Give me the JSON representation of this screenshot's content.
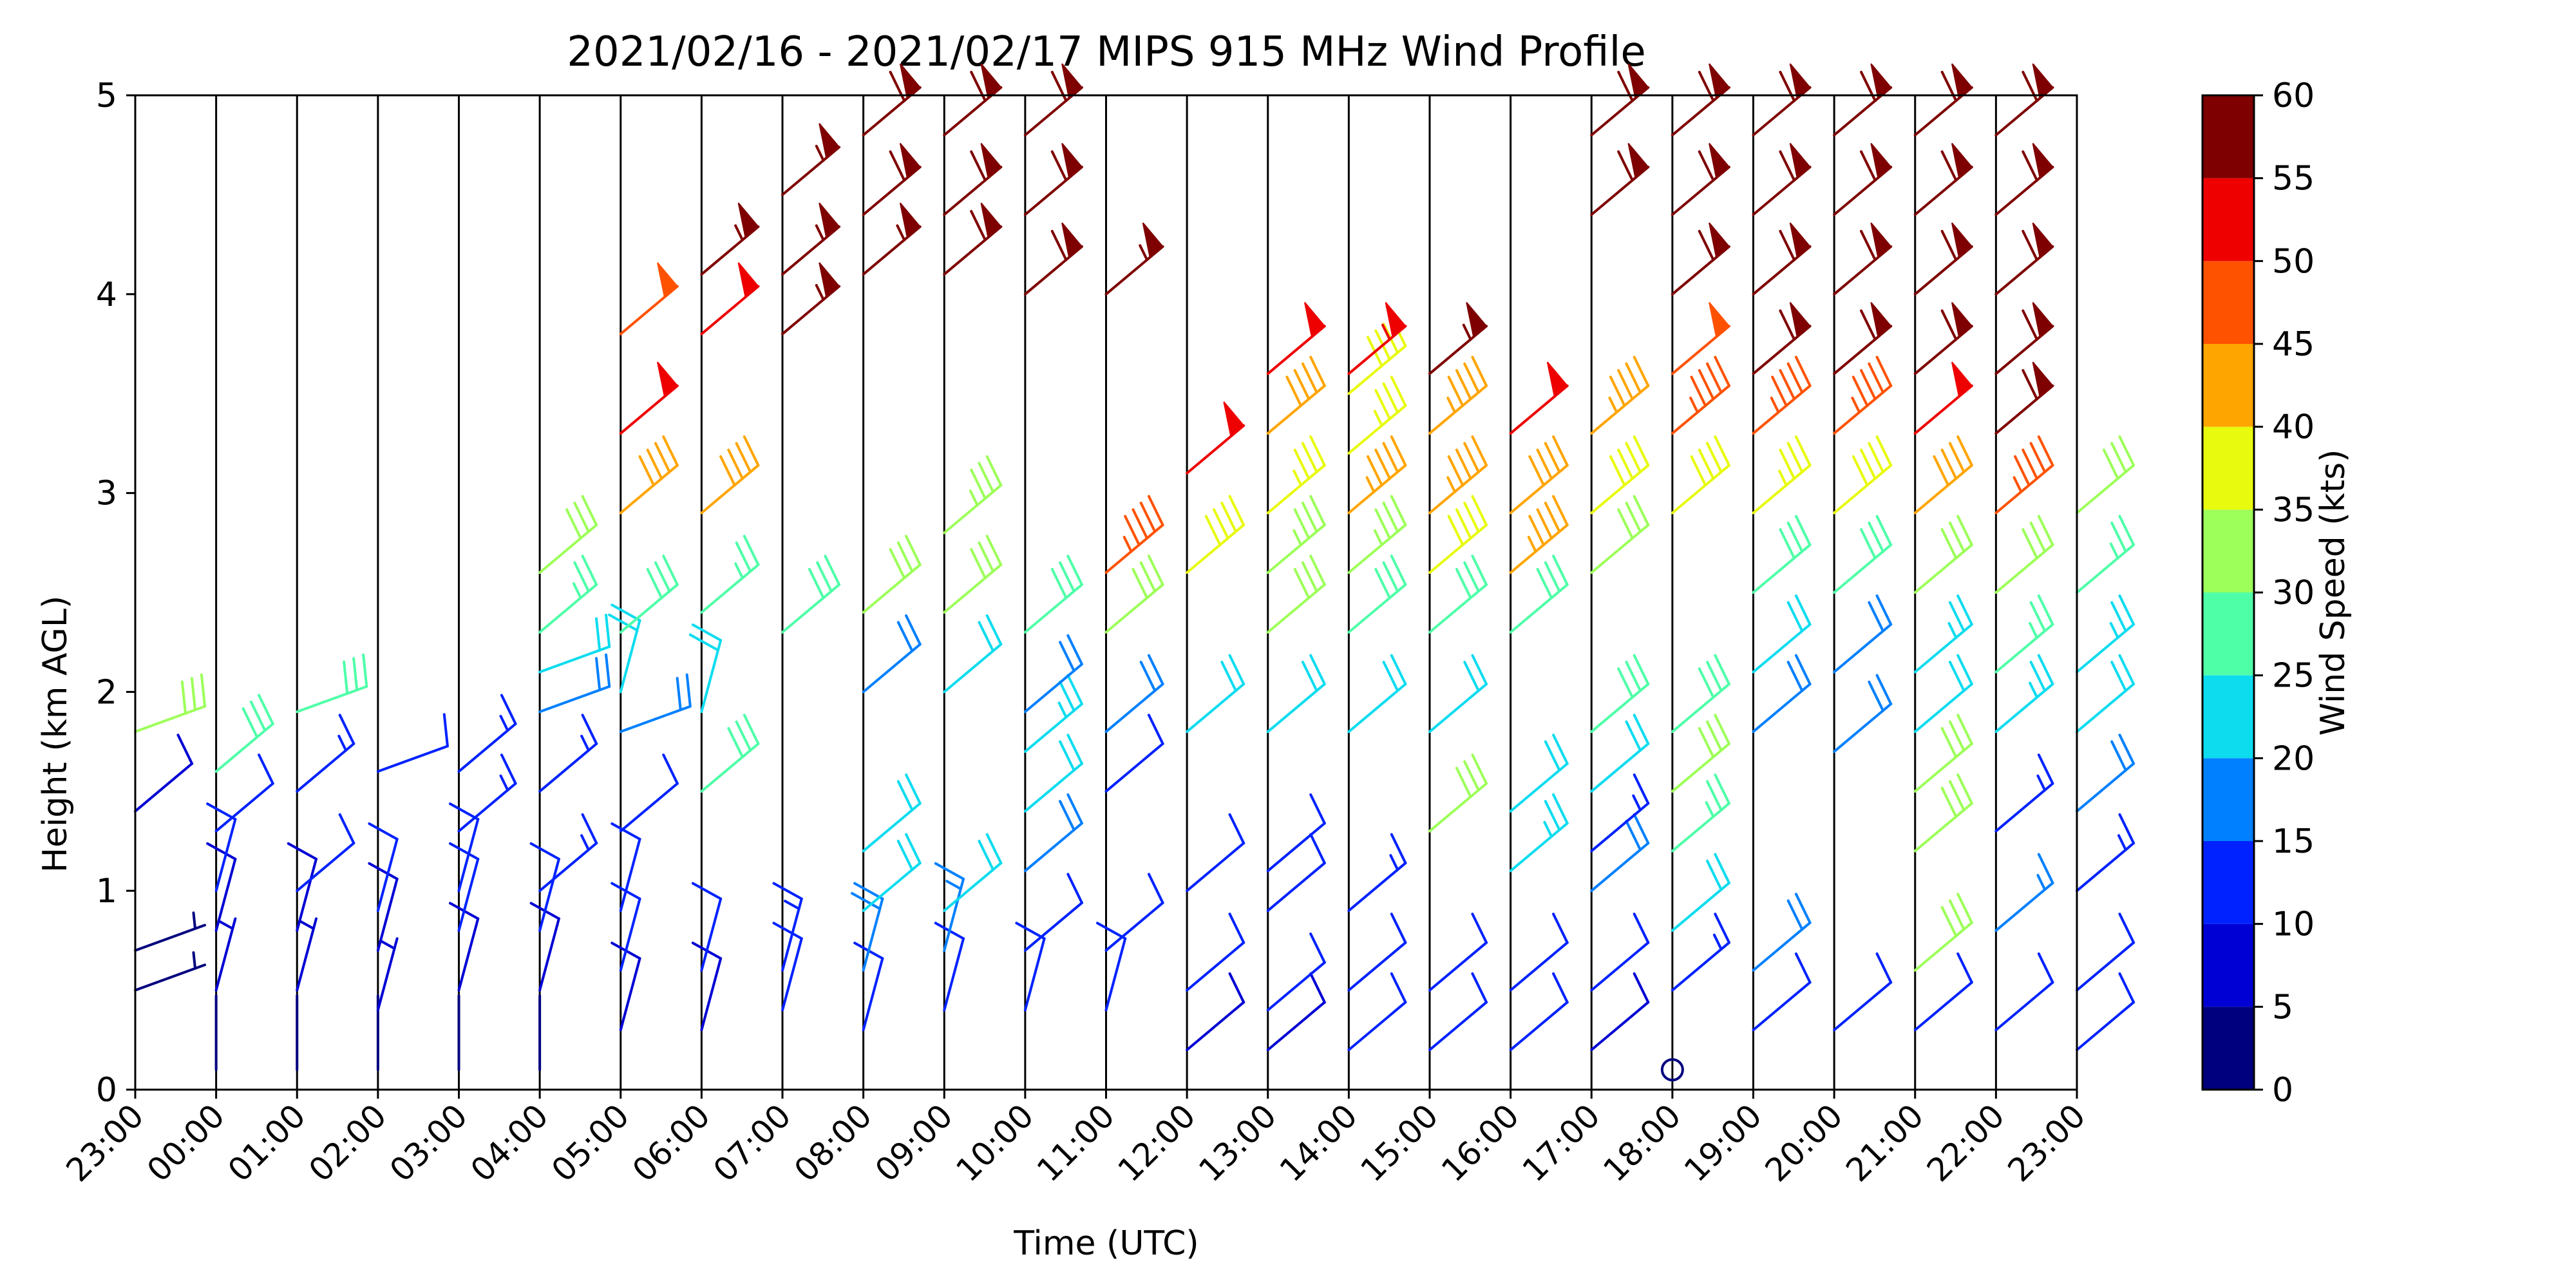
{
  "chart_data": {
    "type": "wind_barb_profile",
    "title": "2021/02/16 - 2021/02/17 MIPS 915 MHz Wind Profile",
    "xlabel": "Time (UTC)",
    "ylabel": "Height (km AGL)",
    "x_tick_labels": [
      "23:00",
      "00:00",
      "01:00",
      "02:00",
      "03:00",
      "04:00",
      "05:00",
      "06:00",
      "07:00",
      "08:00",
      "09:00",
      "10:00",
      "11:00",
      "12:00",
      "13:00",
      "14:00",
      "15:00",
      "16:00",
      "17:00",
      "18:00",
      "19:00",
      "20:00",
      "21:00",
      "22:00",
      "23:00"
    ],
    "ylim": [
      0,
      5
    ],
    "y_ticks": [
      0,
      1,
      2,
      3,
      4,
      5
    ],
    "colorbar": {
      "label": "Wind Speed (kts)",
      "ticks": [
        0,
        5,
        10,
        15,
        20,
        25,
        30,
        35,
        40,
        45,
        50,
        55,
        60
      ],
      "colors": [
        "#00007f",
        "#0000d4",
        "#0022ff",
        "#0080ff",
        "#0ddcef",
        "#4fffa8",
        "#9dff59",
        "#e8fa0e",
        "#ffa500",
        "#ff5200",
        "#ee0000",
        "#7f0000"
      ]
    },
    "profiles": [
      {
        "time": "23:00",
        "barbs": [
          [
            0.5,
            3,
            "nw"
          ],
          [
            0.7,
            4,
            "nw"
          ],
          [
            1.4,
            9,
            "w"
          ],
          [
            1.8,
            32,
            "nw"
          ]
        ]
      },
      {
        "time": "00:00",
        "barbs": [
          [
            0.1,
            1,
            "n"
          ],
          [
            0.5,
            6,
            "sw"
          ],
          [
            0.8,
            8,
            "sw"
          ],
          [
            1.0,
            10,
            "sw"
          ],
          [
            1.3,
            12,
            "w"
          ],
          [
            1.6,
            28,
            "w"
          ]
        ]
      },
      {
        "time": "01:00",
        "barbs": [
          [
            0.1,
            1,
            "n"
          ],
          [
            0.5,
            6,
            "sw"
          ],
          [
            0.8,
            8,
            "sw"
          ],
          [
            1.0,
            12,
            "w"
          ],
          [
            1.5,
            14,
            "w"
          ],
          [
            1.9,
            28,
            "nw"
          ]
        ]
      },
      {
        "time": "02:00",
        "barbs": [
          [
            0.1,
            2,
            "n"
          ],
          [
            0.4,
            7,
            "sw"
          ],
          [
            0.7,
            9,
            "sw"
          ],
          [
            0.9,
            10,
            "sw"
          ],
          [
            1.6,
            10,
            "nw"
          ]
        ]
      },
      {
        "time": "03:00",
        "barbs": [
          [
            0.1,
            2,
            "n"
          ],
          [
            0.5,
            8,
            "sw"
          ],
          [
            0.8,
            10,
            "sw"
          ],
          [
            1.0,
            11,
            "sw"
          ],
          [
            1.3,
            13,
            "w"
          ],
          [
            1.6,
            14,
            "w"
          ]
        ]
      },
      {
        "time": "04:00",
        "barbs": [
          [
            0.1,
            2,
            "n"
          ],
          [
            0.5,
            8,
            "sw"
          ],
          [
            0.8,
            10,
            "sw"
          ],
          [
            1.0,
            13,
            "w"
          ],
          [
            1.5,
            14,
            "w"
          ],
          [
            1.9,
            18,
            "nw"
          ],
          [
            2.1,
            22,
            "nw"
          ],
          [
            2.3,
            26,
            "w"
          ],
          [
            2.6,
            32,
            "w"
          ]
        ]
      },
      {
        "time": "05:00",
        "barbs": [
          [
            0.3,
            8,
            "sw"
          ],
          [
            0.6,
            10,
            "sw"
          ],
          [
            0.9,
            12,
            "sw"
          ],
          [
            1.3,
            12,
            "w"
          ],
          [
            1.8,
            18,
            "nw"
          ],
          [
            2.0,
            20,
            "sw"
          ],
          [
            2.3,
            28,
            "w"
          ],
          [
            2.9,
            42,
            "w"
          ],
          [
            3.3,
            52,
            "w"
          ],
          [
            3.8,
            48,
            "w"
          ]
        ]
      },
      {
        "time": "06:00",
        "barbs": [
          [
            0.3,
            8,
            "sw"
          ],
          [
            0.6,
            11,
            "sw"
          ],
          [
            1.5,
            28,
            "w"
          ],
          [
            1.9,
            20,
            "sw"
          ],
          [
            2.4,
            26,
            "w"
          ],
          [
            2.9,
            42,
            "w"
          ],
          [
            3.8,
            52,
            "w"
          ],
          [
            4.1,
            56,
            "w"
          ]
        ]
      },
      {
        "time": "07:00",
        "barbs": [
          [
            0.4,
            10,
            "sw"
          ],
          [
            0.6,
            14,
            "sw"
          ],
          [
            2.3,
            28,
            "w"
          ],
          [
            3.8,
            56,
            "w"
          ],
          [
            4.1,
            56,
            "w"
          ],
          [
            4.5,
            57,
            "w"
          ]
        ]
      },
      {
        "time": "08:00",
        "barbs": [
          [
            0.3,
            12,
            "sw"
          ],
          [
            0.6,
            18,
            "sw"
          ],
          [
            0.9,
            22,
            "w"
          ],
          [
            1.2,
            20,
            "w"
          ],
          [
            2.0,
            18,
            "w"
          ],
          [
            2.4,
            32,
            "w"
          ],
          [
            4.1,
            57,
            "w"
          ],
          [
            4.4,
            58,
            "w"
          ],
          [
            4.8,
            58,
            "w"
          ]
        ]
      },
      {
        "time": "09:00",
        "barbs": [
          [
            0.4,
            12,
            "sw"
          ],
          [
            0.7,
            16,
            "sw"
          ],
          [
            0.9,
            22,
            "w"
          ],
          [
            2.0,
            20,
            "w"
          ],
          [
            2.4,
            32,
            "w"
          ],
          [
            2.8,
            34,
            "w"
          ],
          [
            4.1,
            58,
            "w"
          ],
          [
            4.4,
            58,
            "w"
          ],
          [
            4.8,
            58,
            "w"
          ]
        ]
      },
      {
        "time": "10:00",
        "barbs": [
          [
            0.4,
            10,
            "sw"
          ],
          [
            0.7,
            12,
            "w"
          ],
          [
            1.1,
            18,
            "w"
          ],
          [
            1.4,
            22,
            "w"
          ],
          [
            1.7,
            24,
            "w"
          ],
          [
            1.9,
            18,
            "w"
          ],
          [
            2.3,
            28,
            "w"
          ],
          [
            4.0,
            58,
            "w"
          ],
          [
            4.4,
            58,
            "w"
          ],
          [
            4.8,
            58,
            "w"
          ]
        ]
      },
      {
        "time": "11:00",
        "barbs": [
          [
            0.4,
            10,
            "sw"
          ],
          [
            0.7,
            12,
            "w"
          ],
          [
            1.5,
            12,
            "w"
          ],
          [
            1.8,
            18,
            "w"
          ],
          [
            2.3,
            32,
            "w"
          ],
          [
            2.6,
            45,
            "w"
          ],
          [
            4.0,
            57,
            "w"
          ]
        ]
      },
      {
        "time": "12:00",
        "barbs": [
          [
            0.2,
            8,
            "w"
          ],
          [
            0.5,
            10,
            "w"
          ],
          [
            1.0,
            12,
            "w"
          ],
          [
            1.8,
            20,
            "w"
          ],
          [
            2.6,
            38,
            "w"
          ],
          [
            3.1,
            52,
            "w"
          ]
        ]
      },
      {
        "time": "13:00",
        "barbs": [
          [
            0.2,
            8,
            "w"
          ],
          [
            0.4,
            10,
            "w"
          ],
          [
            0.9,
            10,
            "w"
          ],
          [
            1.1,
            12,
            "w"
          ],
          [
            1.8,
            20,
            "w"
          ],
          [
            2.3,
            30,
            "w"
          ],
          [
            2.6,
            34,
            "w"
          ],
          [
            2.9,
            36,
            "w"
          ],
          [
            3.3,
            42,
            "w"
          ],
          [
            3.6,
            52,
            "w"
          ]
        ]
      },
      {
        "time": "14:00",
        "barbs": [
          [
            0.2,
            10,
            "w"
          ],
          [
            0.5,
            12,
            "w"
          ],
          [
            0.9,
            14,
            "w"
          ],
          [
            1.8,
            22,
            "w"
          ],
          [
            2.3,
            28,
            "w"
          ],
          [
            2.6,
            34,
            "w"
          ],
          [
            2.9,
            44,
            "w"
          ],
          [
            3.2,
            36,
            "w"
          ],
          [
            3.5,
            38,
            "w"
          ],
          [
            3.6,
            53,
            "w"
          ]
        ]
      },
      {
        "time": "15:00",
        "barbs": [
          [
            0.2,
            10,
            "w"
          ],
          [
            0.5,
            12,
            "w"
          ],
          [
            1.3,
            30,
            "w"
          ],
          [
            1.8,
            22,
            "w"
          ],
          [
            2.3,
            28,
            "w"
          ],
          [
            2.6,
            38,
            "w"
          ],
          [
            2.9,
            44,
            "w"
          ],
          [
            3.3,
            44,
            "w"
          ],
          [
            3.6,
            57,
            "w"
          ]
        ]
      },
      {
        "time": "16:00",
        "barbs": [
          [
            0.2,
            10,
            "w"
          ],
          [
            0.5,
            12,
            "w"
          ],
          [
            1.1,
            24,
            "w"
          ],
          [
            1.4,
            22,
            "w"
          ],
          [
            2.3,
            28,
            "w"
          ],
          [
            2.6,
            44,
            "w"
          ],
          [
            2.9,
            40,
            "w"
          ],
          [
            3.3,
            52,
            "w"
          ]
        ]
      },
      {
        "time": "17:00",
        "barbs": [
          [
            0.2,
            8,
            "w"
          ],
          [
            0.5,
            12,
            "w"
          ],
          [
            1.0,
            18,
            "w"
          ],
          [
            1.2,
            14,
            "w"
          ],
          [
            1.5,
            22,
            "w"
          ],
          [
            1.8,
            28,
            "w"
          ],
          [
            2.6,
            32,
            "w"
          ],
          [
            2.9,
            38,
            "w"
          ],
          [
            3.3,
            44,
            "w"
          ],
          [
            4.4,
            58,
            "w"
          ],
          [
            4.8,
            58,
            "w"
          ]
        ]
      },
      {
        "time": "18:00",
        "barbs": [
          [
            0.1,
            0,
            "calm"
          ],
          [
            0.5,
            14,
            "w"
          ],
          [
            0.8,
            22,
            "w"
          ],
          [
            1.2,
            26,
            "w"
          ],
          [
            1.5,
            30,
            "w"
          ],
          [
            1.8,
            28,
            "w"
          ],
          [
            2.9,
            38,
            "w"
          ],
          [
            3.3,
            46,
            "w"
          ],
          [
            3.6,
            48,
            "w"
          ],
          [
            4.0,
            58,
            "w"
          ],
          [
            4.4,
            58,
            "w"
          ],
          [
            4.8,
            58,
            "w"
          ]
        ]
      },
      {
        "time": "19:00",
        "barbs": [
          [
            0.3,
            12,
            "w"
          ],
          [
            0.6,
            18,
            "w"
          ],
          [
            1.8,
            18,
            "w"
          ],
          [
            2.1,
            20,
            "w"
          ],
          [
            2.5,
            28,
            "w"
          ],
          [
            2.9,
            36,
            "w"
          ],
          [
            3.3,
            46,
            "w"
          ],
          [
            3.6,
            58,
            "w"
          ],
          [
            4.0,
            58,
            "w"
          ],
          [
            4.4,
            58,
            "w"
          ],
          [
            4.8,
            58,
            "w"
          ]
        ]
      },
      {
        "time": "20:00",
        "barbs": [
          [
            0.3,
            12,
            "w"
          ],
          [
            1.7,
            18,
            "w"
          ],
          [
            2.1,
            18,
            "w"
          ],
          [
            2.5,
            28,
            "w"
          ],
          [
            2.9,
            38,
            "w"
          ],
          [
            3.3,
            46,
            "w"
          ],
          [
            3.6,
            58,
            "w"
          ],
          [
            4.0,
            58,
            "w"
          ],
          [
            4.4,
            58,
            "w"
          ],
          [
            4.8,
            58,
            "w"
          ]
        ]
      },
      {
        "time": "21:00",
        "barbs": [
          [
            0.3,
            10,
            "w"
          ],
          [
            0.6,
            32,
            "w"
          ],
          [
            1.2,
            30,
            "w"
          ],
          [
            1.5,
            32,
            "w"
          ],
          [
            1.8,
            22,
            "w"
          ],
          [
            2.1,
            24,
            "w"
          ],
          [
            2.5,
            32,
            "w"
          ],
          [
            2.9,
            42,
            "w"
          ],
          [
            3.3,
            52,
            "w"
          ],
          [
            3.6,
            58,
            "w"
          ],
          [
            4.0,
            58,
            "w"
          ],
          [
            4.4,
            58,
            "w"
          ],
          [
            4.8,
            58,
            "w"
          ]
        ]
      },
      {
        "time": "22:00",
        "barbs": [
          [
            0.3,
            10,
            "w"
          ],
          [
            0.8,
            16,
            "w"
          ],
          [
            1.3,
            14,
            "w"
          ],
          [
            1.8,
            24,
            "w"
          ],
          [
            2.1,
            26,
            "w"
          ],
          [
            2.5,
            32,
            "w"
          ],
          [
            2.9,
            46,
            "w"
          ],
          [
            3.3,
            58,
            "w"
          ],
          [
            3.6,
            58,
            "w"
          ],
          [
            4.0,
            58,
            "w"
          ],
          [
            4.4,
            58,
            "w"
          ],
          [
            4.8,
            58,
            "w"
          ]
        ]
      },
      {
        "time": "23:00",
        "barbs": [
          [
            0.2,
            10,
            "w"
          ],
          [
            0.5,
            12,
            "w"
          ],
          [
            1.0,
            14,
            "w"
          ],
          [
            1.4,
            18,
            "w"
          ],
          [
            1.8,
            22,
            "w"
          ],
          [
            2.1,
            24,
            "w"
          ],
          [
            2.5,
            26,
            "w"
          ],
          [
            2.9,
            32,
            "w"
          ]
        ]
      }
    ]
  }
}
